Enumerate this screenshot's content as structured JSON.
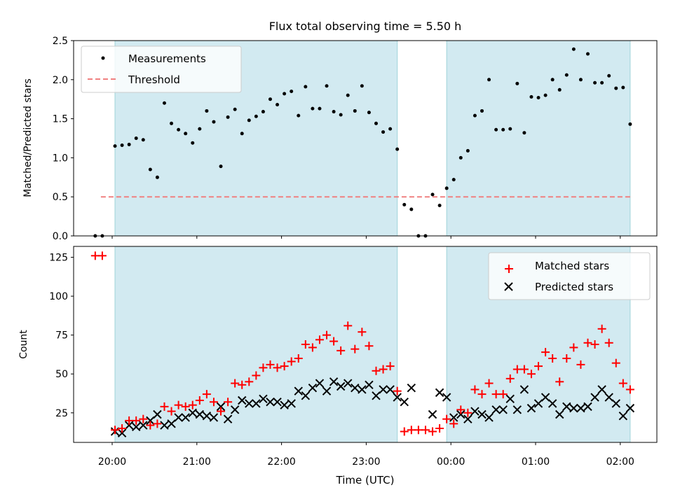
{
  "chart_data": {
    "title": "Flux total observing time = 5.50 h",
    "xlabel": "Time (UTC)",
    "x_ticks": [
      "20:00",
      "21:00",
      "22:00",
      "23:00",
      "00:00",
      "01:00",
      "02:00"
    ],
    "shaded_intervals": [
      [
        "20:02",
        "23:22"
      ],
      [
        "23:57",
        "02:07"
      ]
    ],
    "shade_color": "#add8e6",
    "panels": [
      {
        "type": "scatter",
        "ylabel": "Matched/Predicted stars",
        "ylim": [
          0,
          2.5
        ],
        "y_ticks": [
          "0.0",
          "0.5",
          "1.0",
          "1.5",
          "2.0",
          "2.5"
        ],
        "legend": "top-left",
        "series": [
          {
            "name": "Measurements",
            "marker": "dot",
            "color": "#000000",
            "points": [
              [
                "19:48",
                0.0
              ],
              [
                "19:53",
                0.0
              ],
              [
                "20:02",
                1.15
              ],
              [
                "20:07",
                1.16
              ],
              [
                "20:12",
                1.17
              ],
              [
                "20:17",
                1.25
              ],
              [
                "20:22",
                1.23
              ],
              [
                "20:27",
                0.85
              ],
              [
                "20:32",
                0.75
              ],
              [
                "20:37",
                1.7
              ],
              [
                "20:42",
                1.44
              ],
              [
                "20:47",
                1.36
              ],
              [
                "20:52",
                1.31
              ],
              [
                "20:57",
                1.19
              ],
              [
                "21:02",
                1.37
              ],
              [
                "21:07",
                1.6
              ],
              [
                "21:12",
                1.46
              ],
              [
                "21:17",
                0.89
              ],
              [
                "21:22",
                1.52
              ],
              [
                "21:27",
                1.62
              ],
              [
                "21:32",
                1.31
              ],
              [
                "21:37",
                1.48
              ],
              [
                "21:42",
                1.53
              ],
              [
                "21:47",
                1.59
              ],
              [
                "21:52",
                1.75
              ],
              [
                "21:57",
                1.68
              ],
              [
                "22:02",
                1.82
              ],
              [
                "22:07",
                1.85
              ],
              [
                "22:12",
                1.54
              ],
              [
                "22:17",
                1.91
              ],
              [
                "22:22",
                1.63
              ],
              [
                "22:27",
                1.63
              ],
              [
                "22:32",
                1.92
              ],
              [
                "22:37",
                1.59
              ],
              [
                "22:42",
                1.55
              ],
              [
                "22:47",
                1.8
              ],
              [
                "22:52",
                1.6
              ],
              [
                "22:57",
                1.92
              ],
              [
                "23:02",
                1.58
              ],
              [
                "23:07",
                1.44
              ],
              [
                "23:12",
                1.33
              ],
              [
                "23:17",
                1.37
              ],
              [
                "23:22",
                1.11
              ],
              [
                "23:27",
                0.4
              ],
              [
                "23:32",
                0.34
              ],
              [
                "23:37",
                0.0
              ],
              [
                "23:42",
                0.0
              ],
              [
                "23:47",
                0.53
              ],
              [
                "23:52",
                0.39
              ],
              [
                "23:57",
                0.61
              ],
              [
                "00:02",
                0.72
              ],
              [
                "00:07",
                1.0
              ],
              [
                "00:12",
                1.09
              ],
              [
                "00:17",
                1.54
              ],
              [
                "00:22",
                1.6
              ],
              [
                "00:27",
                2.0
              ],
              [
                "00:32",
                1.36
              ],
              [
                "00:37",
                1.36
              ],
              [
                "00:42",
                1.37
              ],
              [
                "00:47",
                1.95
              ],
              [
                "00:52",
                1.32
              ],
              [
                "00:57",
                1.78
              ],
              [
                "01:02",
                1.77
              ],
              [
                "01:07",
                1.8
              ],
              [
                "01:12",
                2.0
              ],
              [
                "01:17",
                1.87
              ],
              [
                "01:22",
                2.06
              ],
              [
                "01:27",
                2.39
              ],
              [
                "01:32",
                2.0
              ],
              [
                "01:37",
                2.33
              ],
              [
                "01:42",
                1.96
              ],
              [
                "01:47",
                1.96
              ],
              [
                "01:52",
                2.05
              ],
              [
                "01:57",
                1.89
              ],
              [
                "02:02",
                1.9
              ],
              [
                "02:07",
                1.43
              ]
            ]
          },
          {
            "name": "Threshold",
            "marker": "dashed-line",
            "color": "#f08080",
            "points": [
              [
                "19:52",
                0.5
              ],
              [
                "02:07",
                0.5
              ]
            ]
          }
        ]
      },
      {
        "type": "scatter",
        "ylabel": "Count",
        "ylim": [
          6,
          132
        ],
        "y_ticks": [
          "25",
          "50",
          "75",
          "100",
          "125"
        ],
        "legend": "top-right",
        "series": [
          {
            "name": "Matched stars",
            "marker": "plus",
            "color": "#ff0000",
            "points": [
              [
                "19:48",
                126
              ],
              [
                "19:53",
                126
              ],
              [
                "20:02",
                14
              ],
              [
                "20:07",
                15
              ],
              [
                "20:12",
                20
              ],
              [
                "20:17",
                20
              ],
              [
                "20:22",
                21
              ],
              [
                "20:27",
                17
              ],
              [
                "20:32",
                18
              ],
              [
                "20:37",
                29
              ],
              [
                "20:42",
                26
              ],
              [
                "20:47",
                30
              ],
              [
                "20:52",
                29
              ],
              [
                "20:57",
                30
              ],
              [
                "21:02",
                33
              ],
              [
                "21:07",
                37
              ],
              [
                "21:12",
                32
              ],
              [
                "21:17",
                26
              ],
              [
                "21:22",
                32
              ],
              [
                "21:27",
                44
              ],
              [
                "21:32",
                43
              ],
              [
                "21:37",
                45
              ],
              [
                "21:42",
                49
              ],
              [
                "21:47",
                54
              ],
              [
                "21:52",
                56
              ],
              [
                "21:57",
                54
              ],
              [
                "22:02",
                55
              ],
              [
                "22:07",
                58
              ],
              [
                "22:12",
                60
              ],
              [
                "22:17",
                69
              ],
              [
                "22:22",
                67
              ],
              [
                "22:27",
                72
              ],
              [
                "22:32",
                75
              ],
              [
                "22:37",
                71
              ],
              [
                "22:42",
                65
              ],
              [
                "22:47",
                81
              ],
              [
                "22:52",
                66
              ],
              [
                "22:57",
                77
              ],
              [
                "23:02",
                68
              ],
              [
                "23:07",
                52
              ],
              [
                "23:12",
                53
              ],
              [
                "23:17",
                55
              ],
              [
                "23:22",
                39
              ],
              [
                "23:27",
                13
              ],
              [
                "23:32",
                14
              ],
              [
                "23:37",
                14
              ],
              [
                "23:42",
                14
              ],
              [
                "23:47",
                13
              ],
              [
                "23:52",
                15
              ],
              [
                "23:57",
                21
              ],
              [
                "00:02",
                18
              ],
              [
                "00:07",
                27
              ],
              [
                "00:12",
                25
              ],
              [
                "00:17",
                40
              ],
              [
                "00:22",
                37
              ],
              [
                "00:27",
                44
              ],
              [
                "00:32",
                37
              ],
              [
                "00:37",
                37
              ],
              [
                "00:42",
                47
              ],
              [
                "00:47",
                53
              ],
              [
                "00:52",
                53
              ],
              [
                "00:57",
                50
              ],
              [
                "01:02",
                55
              ],
              [
                "01:07",
                64
              ],
              [
                "01:12",
                60
              ],
              [
                "01:17",
                45
              ],
              [
                "01:22",
                60
              ],
              [
                "01:27",
                67
              ],
              [
                "01:32",
                56
              ],
              [
                "01:37",
                70
              ],
              [
                "01:42",
                69
              ],
              [
                "01:47",
                79
              ],
              [
                "01:52",
                70
              ],
              [
                "01:57",
                57
              ],
              [
                "02:02",
                44
              ],
              [
                "02:07",
                40
              ]
            ]
          },
          {
            "name": "Predicted stars",
            "marker": "x",
            "color": "#000000",
            "points": [
              [
                "20:02",
                13
              ],
              [
                "20:07",
                12
              ],
              [
                "20:12",
                17
              ],
              [
                "20:17",
                16
              ],
              [
                "20:22",
                17
              ],
              [
                "20:27",
                20
              ],
              [
                "20:32",
                24
              ],
              [
                "20:37",
                17
              ],
              [
                "20:42",
                18
              ],
              [
                "20:47",
                22
              ],
              [
                "20:52",
                22
              ],
              [
                "20:57",
                25
              ],
              [
                "21:02",
                24
              ],
              [
                "21:07",
                23
              ],
              [
                "21:12",
                22
              ],
              [
                "21:17",
                29
              ],
              [
                "21:22",
                21
              ],
              [
                "21:27",
                27
              ],
              [
                "21:32",
                33
              ],
              [
                "21:37",
                31
              ],
              [
                "21:42",
                31
              ],
              [
                "21:47",
                34
              ],
              [
                "21:52",
                32
              ],
              [
                "21:57",
                32
              ],
              [
                "22:02",
                30
              ],
              [
                "22:07",
                31
              ],
              [
                "22:12",
                39
              ],
              [
                "22:17",
                36
              ],
              [
                "22:22",
                41
              ],
              [
                "22:27",
                44
              ],
              [
                "22:32",
                39
              ],
              [
                "22:37",
                45
              ],
              [
                "22:42",
                42
              ],
              [
                "22:47",
                44
              ],
              [
                "22:52",
                41
              ],
              [
                "22:57",
                40
              ],
              [
                "23:02",
                43
              ],
              [
                "23:07",
                36
              ],
              [
                "23:12",
                40
              ],
              [
                "23:17",
                40
              ],
              [
                "23:22",
                35
              ],
              [
                "23:27",
                32
              ],
              [
                "23:32",
                41
              ],
              [
                "23:47",
                24
              ],
              [
                "23:52",
                38
              ],
              [
                "23:57",
                35
              ],
              [
                "00:02",
                22
              ],
              [
                "00:07",
                24
              ],
              [
                "00:12",
                21
              ],
              [
                "00:17",
                26
              ],
              [
                "00:22",
                24
              ],
              [
                "00:27",
                22
              ],
              [
                "00:32",
                27
              ],
              [
                "00:37",
                27
              ],
              [
                "00:42",
                34
              ],
              [
                "00:47",
                27
              ],
              [
                "00:52",
                40
              ],
              [
                "00:57",
                28
              ],
              [
                "01:02",
                31
              ],
              [
                "01:07",
                35
              ],
              [
                "01:12",
                31
              ],
              [
                "01:17",
                24
              ],
              [
                "01:22",
                29
              ],
              [
                "01:27",
                28
              ],
              [
                "01:32",
                28
              ],
              [
                "01:37",
                29
              ],
              [
                "01:42",
                35
              ],
              [
                "01:47",
                40
              ],
              [
                "01:52",
                35
              ],
              [
                "01:57",
                31
              ],
              [
                "02:02",
                23
              ],
              [
                "02:07",
                28
              ]
            ]
          }
        ]
      }
    ]
  }
}
